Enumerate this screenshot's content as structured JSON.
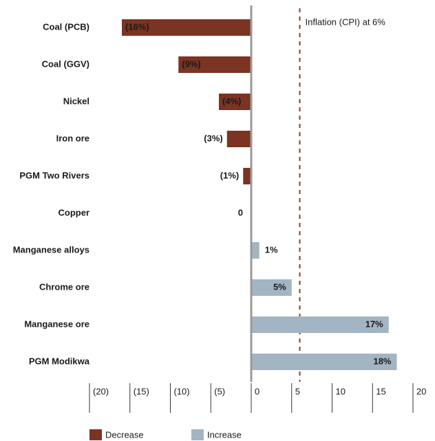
{
  "chart_data": {
    "type": "bar",
    "categories": [
      "Coal (PCB)",
      "Coal (GGV)",
      "Nickel",
      "Iron ore",
      "PGM Two Rivers",
      "Copper",
      "Manganese alloys",
      "Chrome ore",
      "Manganese ore",
      "PGM Modikwa"
    ],
    "values": [
      -16,
      -9,
      -4,
      -3,
      -1,
      0,
      1,
      5,
      17,
      18
    ],
    "value_labels": [
      "(16%)",
      "(9%)",
      "(4%)",
      "(3%)",
      "(1%)",
      "0",
      "1%",
      "5%",
      "17%",
      "18%"
    ],
    "xlim": [
      -20,
      20
    ],
    "xticks": [
      {
        "value": -20,
        "label": "(20)"
      },
      {
        "value": -15,
        "label": "(15)"
      },
      {
        "value": -10,
        "label": "(10)"
      },
      {
        "value": -5,
        "label": "(5)"
      },
      0,
      5,
      10,
      15,
      20
    ],
    "legend": [
      {
        "name": "Decrease",
        "color": "#7b3322"
      },
      {
        "name": "Increase",
        "color": "#a3b5c3"
      }
    ],
    "annotation": {
      "text": "Inflation (CPI) at 6%",
      "value": 6,
      "color": "#8b3a2a"
    }
  }
}
